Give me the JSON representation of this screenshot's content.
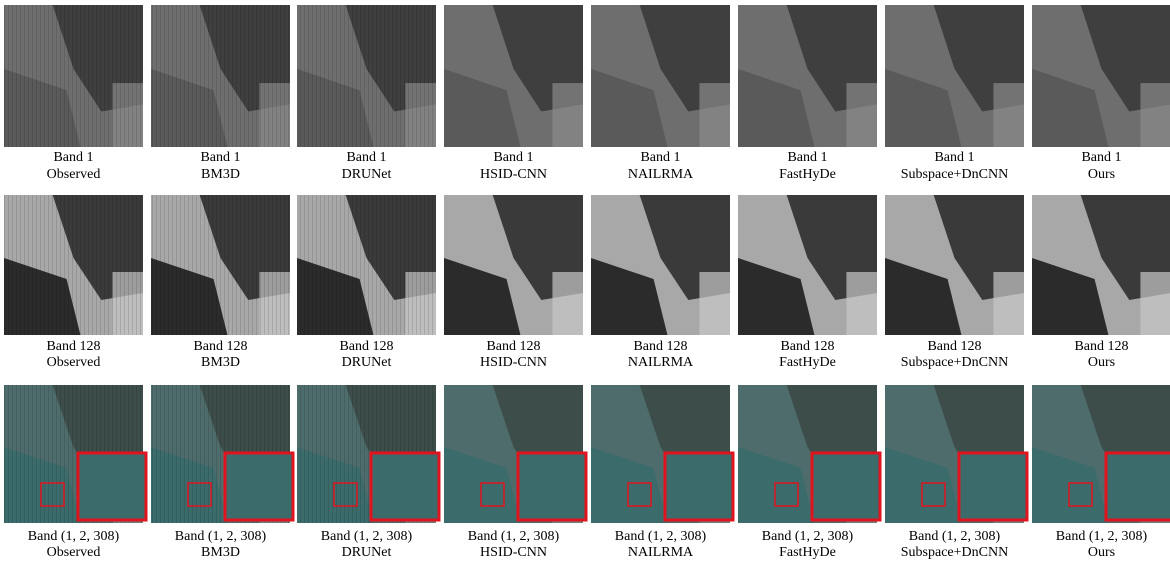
{
  "rows": [
    {
      "panels": [
        {
          "band": "Band 1",
          "method": "Observed"
        },
        {
          "band": "Band 1",
          "method": "BM3D"
        },
        {
          "band": "Band 1",
          "method": "DRUNet"
        },
        {
          "band": "Band 1",
          "method": "HSID-CNN"
        },
        {
          "band": "Band 1",
          "method": "NAILRMA"
        },
        {
          "band": "Band 1",
          "method": "FastHyDe"
        },
        {
          "band": "Band 1",
          "method": "Subspace+DnCNN"
        },
        {
          "band": "Band 1",
          "method": "Ours"
        }
      ]
    },
    {
      "panels": [
        {
          "band": "Band 128",
          "method": "Observed"
        },
        {
          "band": "Band 128",
          "method": "BM3D"
        },
        {
          "band": "Band 128",
          "method": "DRUNet"
        },
        {
          "band": "Band 128",
          "method": "HSID-CNN"
        },
        {
          "band": "Band 128",
          "method": "NAILRMA"
        },
        {
          "band": "Band 128",
          "method": "FastHyDe"
        },
        {
          "band": "Band 128",
          "method": "Subspace+DnCNN"
        },
        {
          "band": "Band 128",
          "method": "Ours"
        }
      ]
    },
    {
      "panels": [
        {
          "band": "Band (1, 2, 308)",
          "method": "Observed"
        },
        {
          "band": "Band (1, 2, 308)",
          "method": "BM3D"
        },
        {
          "band": "Band (1, 2, 308)",
          "method": "DRUNet"
        },
        {
          "band": "Band (1, 2, 308)",
          "method": "HSID-CNN"
        },
        {
          "band": "Band (1, 2, 308)",
          "method": "NAILRMA"
        },
        {
          "band": "Band (1, 2, 308)",
          "method": "FastHyDe"
        },
        {
          "band": "Band (1, 2, 308)",
          "method": "Subspace+DnCNN"
        },
        {
          "band": "Band (1, 2, 308)",
          "method": "Ours"
        }
      ]
    }
  ]
}
